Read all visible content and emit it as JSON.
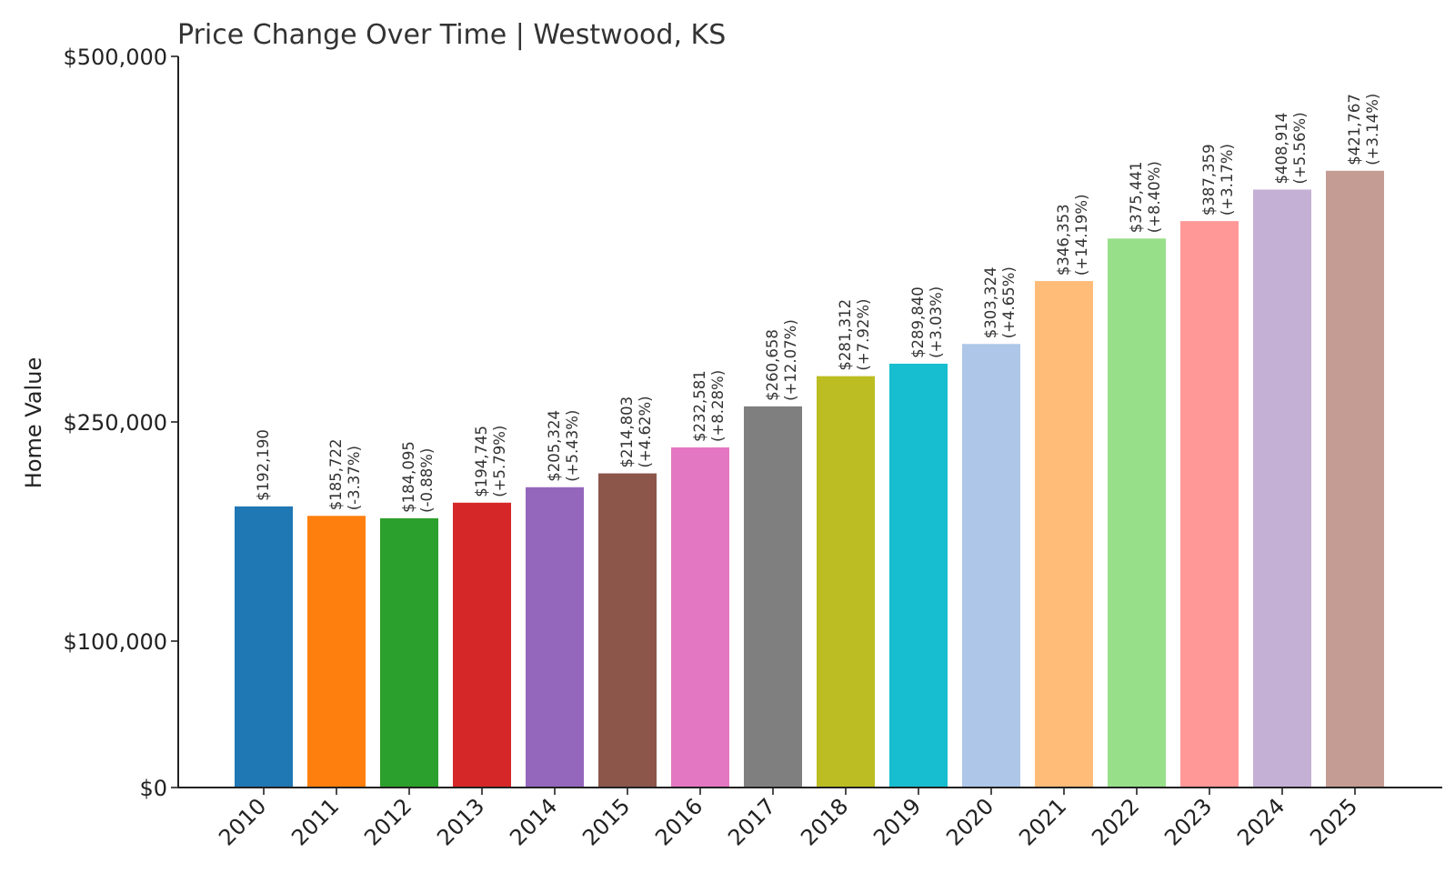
{
  "chart_data": {
    "type": "bar",
    "title": "Price Change Over Time | Westwood, KS",
    "ylabel": "Home Value",
    "xlabel": "",
    "ylim": [
      0,
      500000
    ],
    "yticks": [
      {
        "value": 0,
        "label": "$0"
      },
      {
        "value": 100000,
        "label": "$100,000"
      },
      {
        "value": 250000,
        "label": "$250,000"
      },
      {
        "value": 500000,
        "label": "$500,000"
      }
    ],
    "grid": false,
    "categories": [
      "2010",
      "2011",
      "2012",
      "2013",
      "2014",
      "2015",
      "2016",
      "2017",
      "2018",
      "2019",
      "2020",
      "2021",
      "2022",
      "2023",
      "2024",
      "2025"
    ],
    "values": [
      192190,
      185722,
      184095,
      194745,
      205324,
      214803,
      232581,
      260658,
      281312,
      289840,
      303324,
      346353,
      375441,
      387359,
      408914,
      421767
    ],
    "value_labels": [
      "$192,190",
      "$185,722",
      "$184,095",
      "$194,745",
      "$205,324",
      "$214,803",
      "$232,581",
      "$260,658",
      "$281,312",
      "$289,840",
      "$303,324",
      "$346,353",
      "$375,441",
      "$387,359",
      "$408,914",
      "$421,767"
    ],
    "change_labels": [
      "",
      "(-3.37%)",
      "(-0.88%)",
      "(+5.79%)",
      "(+5.43%)",
      "(+4.62%)",
      "(+8.28%)",
      "(+12.07%)",
      "(+7.92%)",
      "(+3.03%)",
      "(+4.65%)",
      "(+14.19%)",
      "(+8.40%)",
      "(+3.17%)",
      "(+5.56%)",
      "(+3.14%)"
    ],
    "colors": [
      "#1f77b4",
      "#ff7f0e",
      "#2ca02c",
      "#d62728",
      "#9467bd",
      "#8c564b",
      "#e377c2",
      "#7f7f7f",
      "#bcbd22",
      "#17becf",
      "#aec7e8",
      "#ffbb78",
      "#98df8a",
      "#ff9896",
      "#c5b0d5",
      "#c49c94"
    ]
  }
}
